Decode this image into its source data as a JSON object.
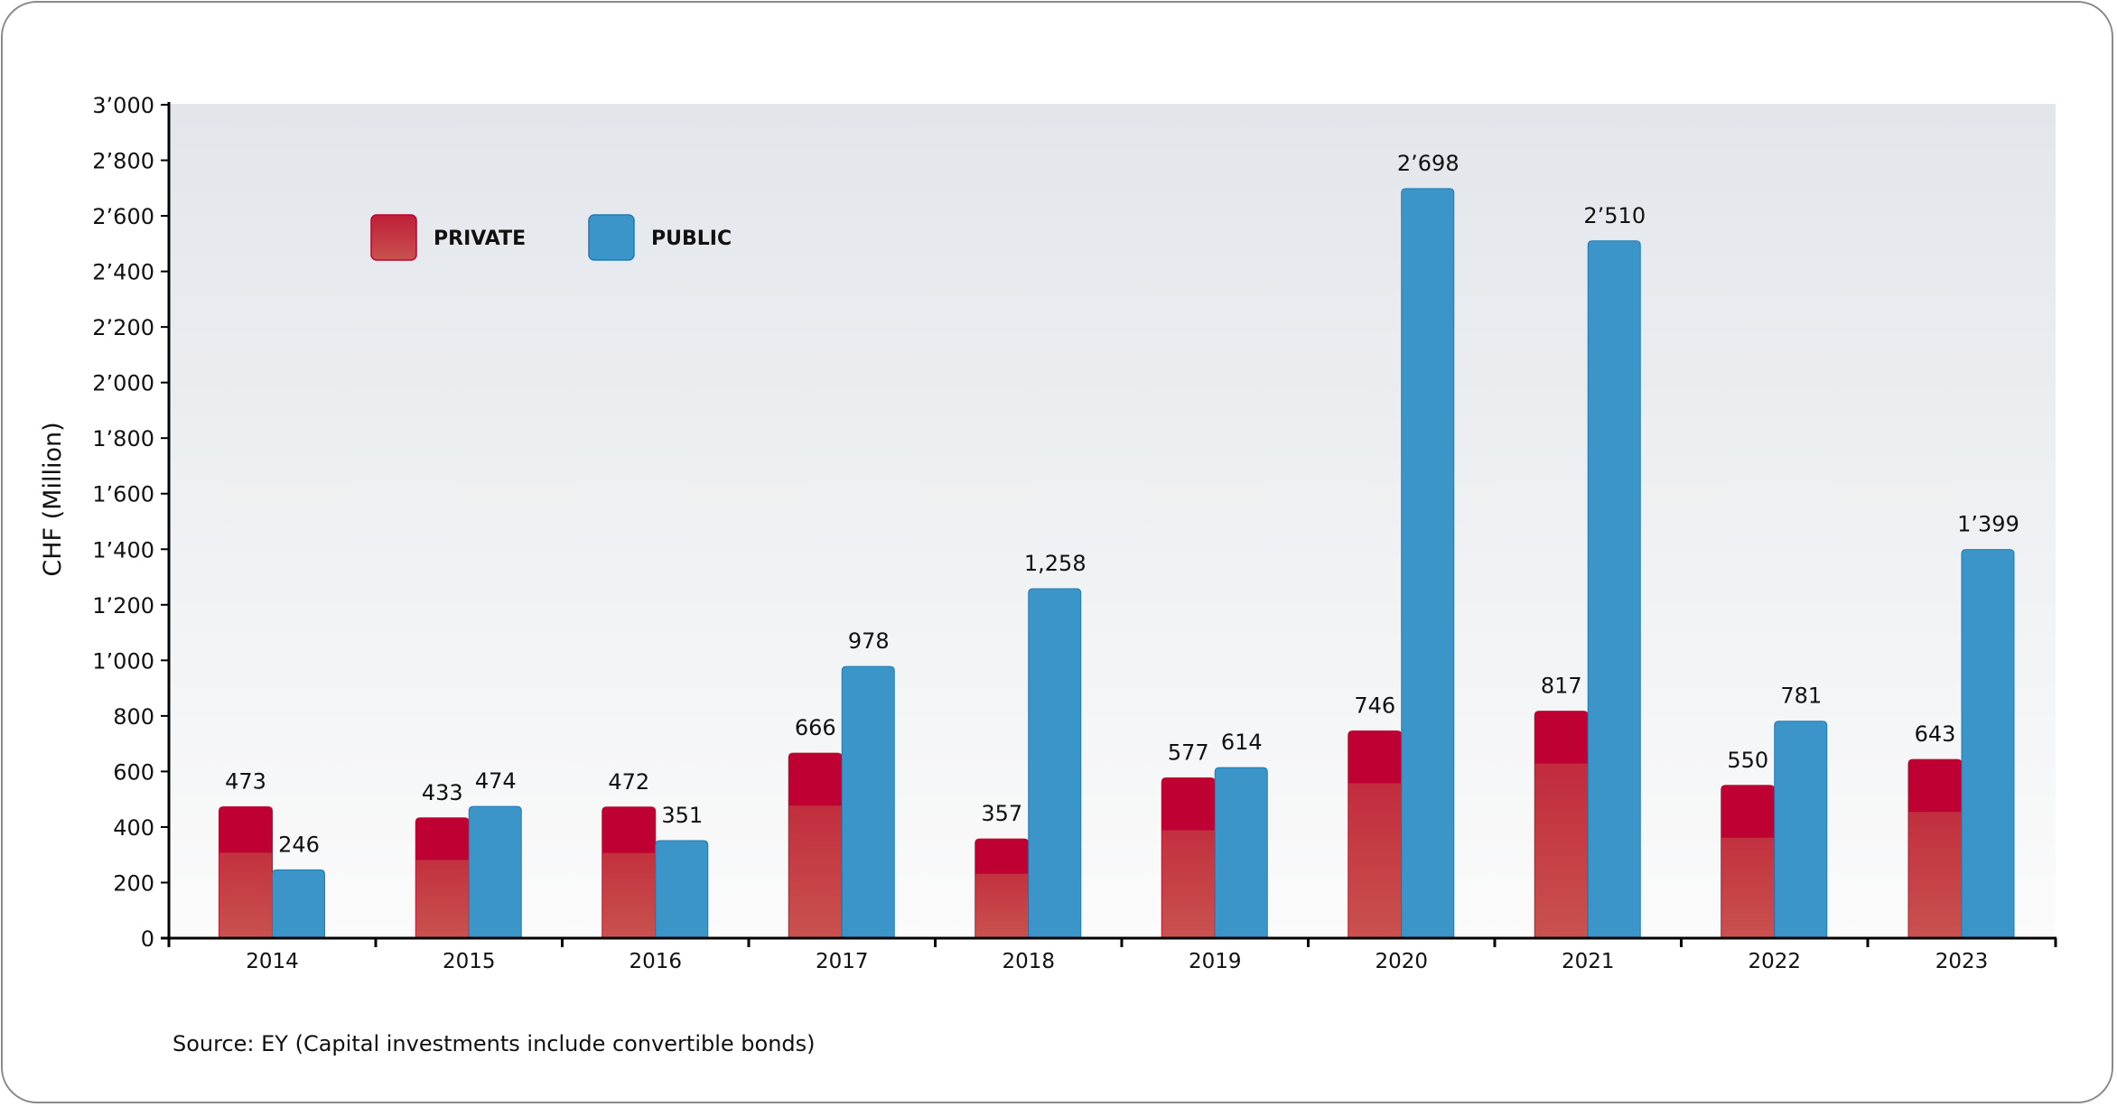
{
  "chart_data": {
    "type": "bar",
    "title": "",
    "xlabel": "",
    "ylabel": "CHF (Million)",
    "ylim": [
      0,
      3000
    ],
    "yticks": [
      0,
      200,
      400,
      600,
      800,
      1000,
      1200,
      1400,
      1600,
      1800,
      2000,
      2200,
      2400,
      2600,
      2800,
      3000
    ],
    "ytick_labels": [
      "0",
      "200",
      "400",
      "600",
      "800",
      "1’000",
      "1’200",
      "1’400",
      "1’600",
      "1’800",
      "2’000",
      "2’200",
      "2’400",
      "2’600",
      "2’800",
      "3’000"
    ],
    "categories": [
      "2014",
      "2015",
      "2016",
      "2017",
      "2018",
      "2019",
      "2020",
      "2021",
      "2022",
      "2023"
    ],
    "series": [
      {
        "name": "PRIVATE",
        "color": "#be0032",
        "color_light": "#c9524f",
        "values": [
          473,
          433,
          472,
          666,
          357,
          577,
          746,
          817,
          550,
          643
        ],
        "labels": [
          "473",
          "433",
          "472",
          "666",
          "357",
          "577",
          "746",
          "817",
          "550",
          "643"
        ]
      },
      {
        "name": "PUBLIC",
        "color": "#3b95c9",
        "color_border": "#1f7ab5",
        "values": [
          246,
          474,
          351,
          978,
          1258,
          614,
          2698,
          2510,
          781,
          1399
        ],
        "labels": [
          "246",
          "474",
          "351",
          "978",
          "1,258",
          "614",
          "2’698",
          "2’510",
          "781",
          "1’399"
        ]
      }
    ],
    "legend": {
      "placement": "top-left",
      "entries": [
        "PRIVATE",
        "PUBLIC"
      ]
    },
    "grid": false,
    "background_gradient": [
      "#e2e6eb",
      "#fbfbfb"
    ]
  },
  "source_note": "Source: EY (Capital investments include convertible bonds)"
}
